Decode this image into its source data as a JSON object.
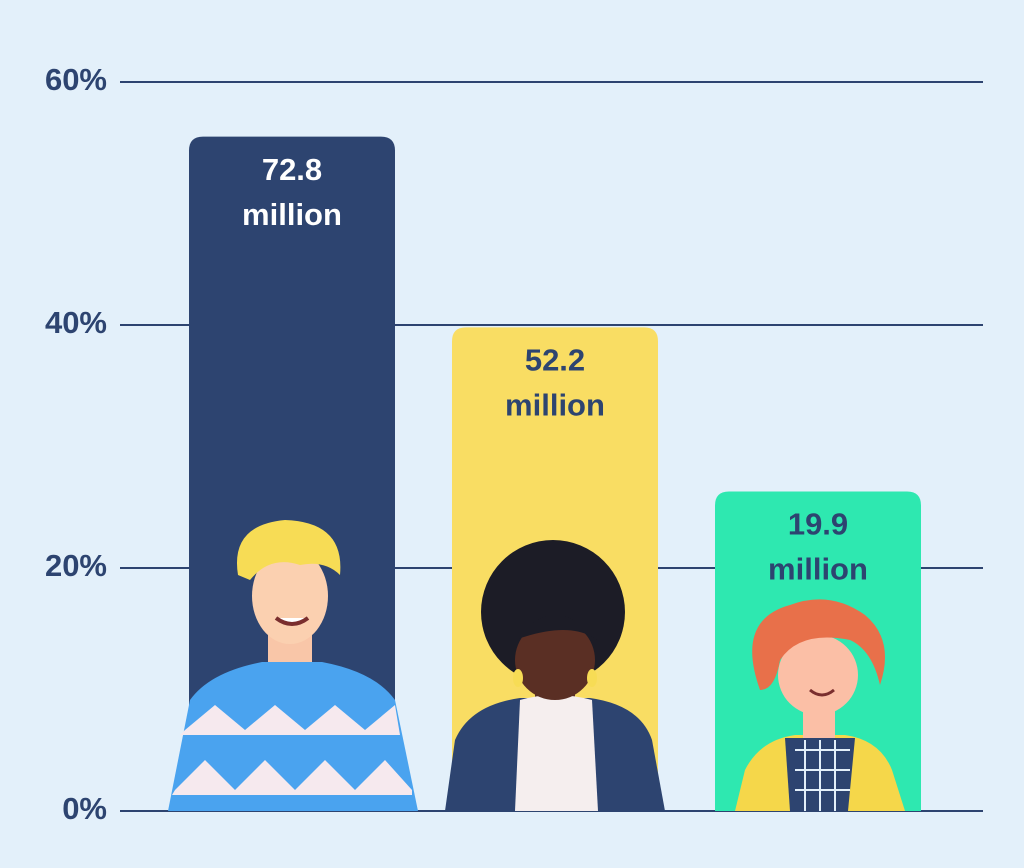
{
  "chart_data": {
    "type": "bar",
    "categories": [
      null,
      null,
      null
    ],
    "values": [
      55.5,
      39.8,
      26.3
    ],
    "colors": [
      "#2d4470",
      "#f9dd63",
      "#2ee8b0"
    ],
    "bar_labels": [
      [
        "72.8",
        "million"
      ],
      [
        "52.2",
        "million"
      ],
      [
        "19.9",
        "million"
      ]
    ],
    "bar_label_colors": [
      "#ffffff",
      "#2d4470",
      "#2d4470"
    ],
    "ylim": [
      0,
      60
    ],
    "yticks": [
      {
        "value": 0,
        "label": "0%"
      },
      {
        "value": 20,
        "label": "20%"
      },
      {
        "value": 40,
        "label": "40%"
      },
      {
        "value": 60,
        "label": "60%"
      }
    ],
    "grid": true
  }
}
